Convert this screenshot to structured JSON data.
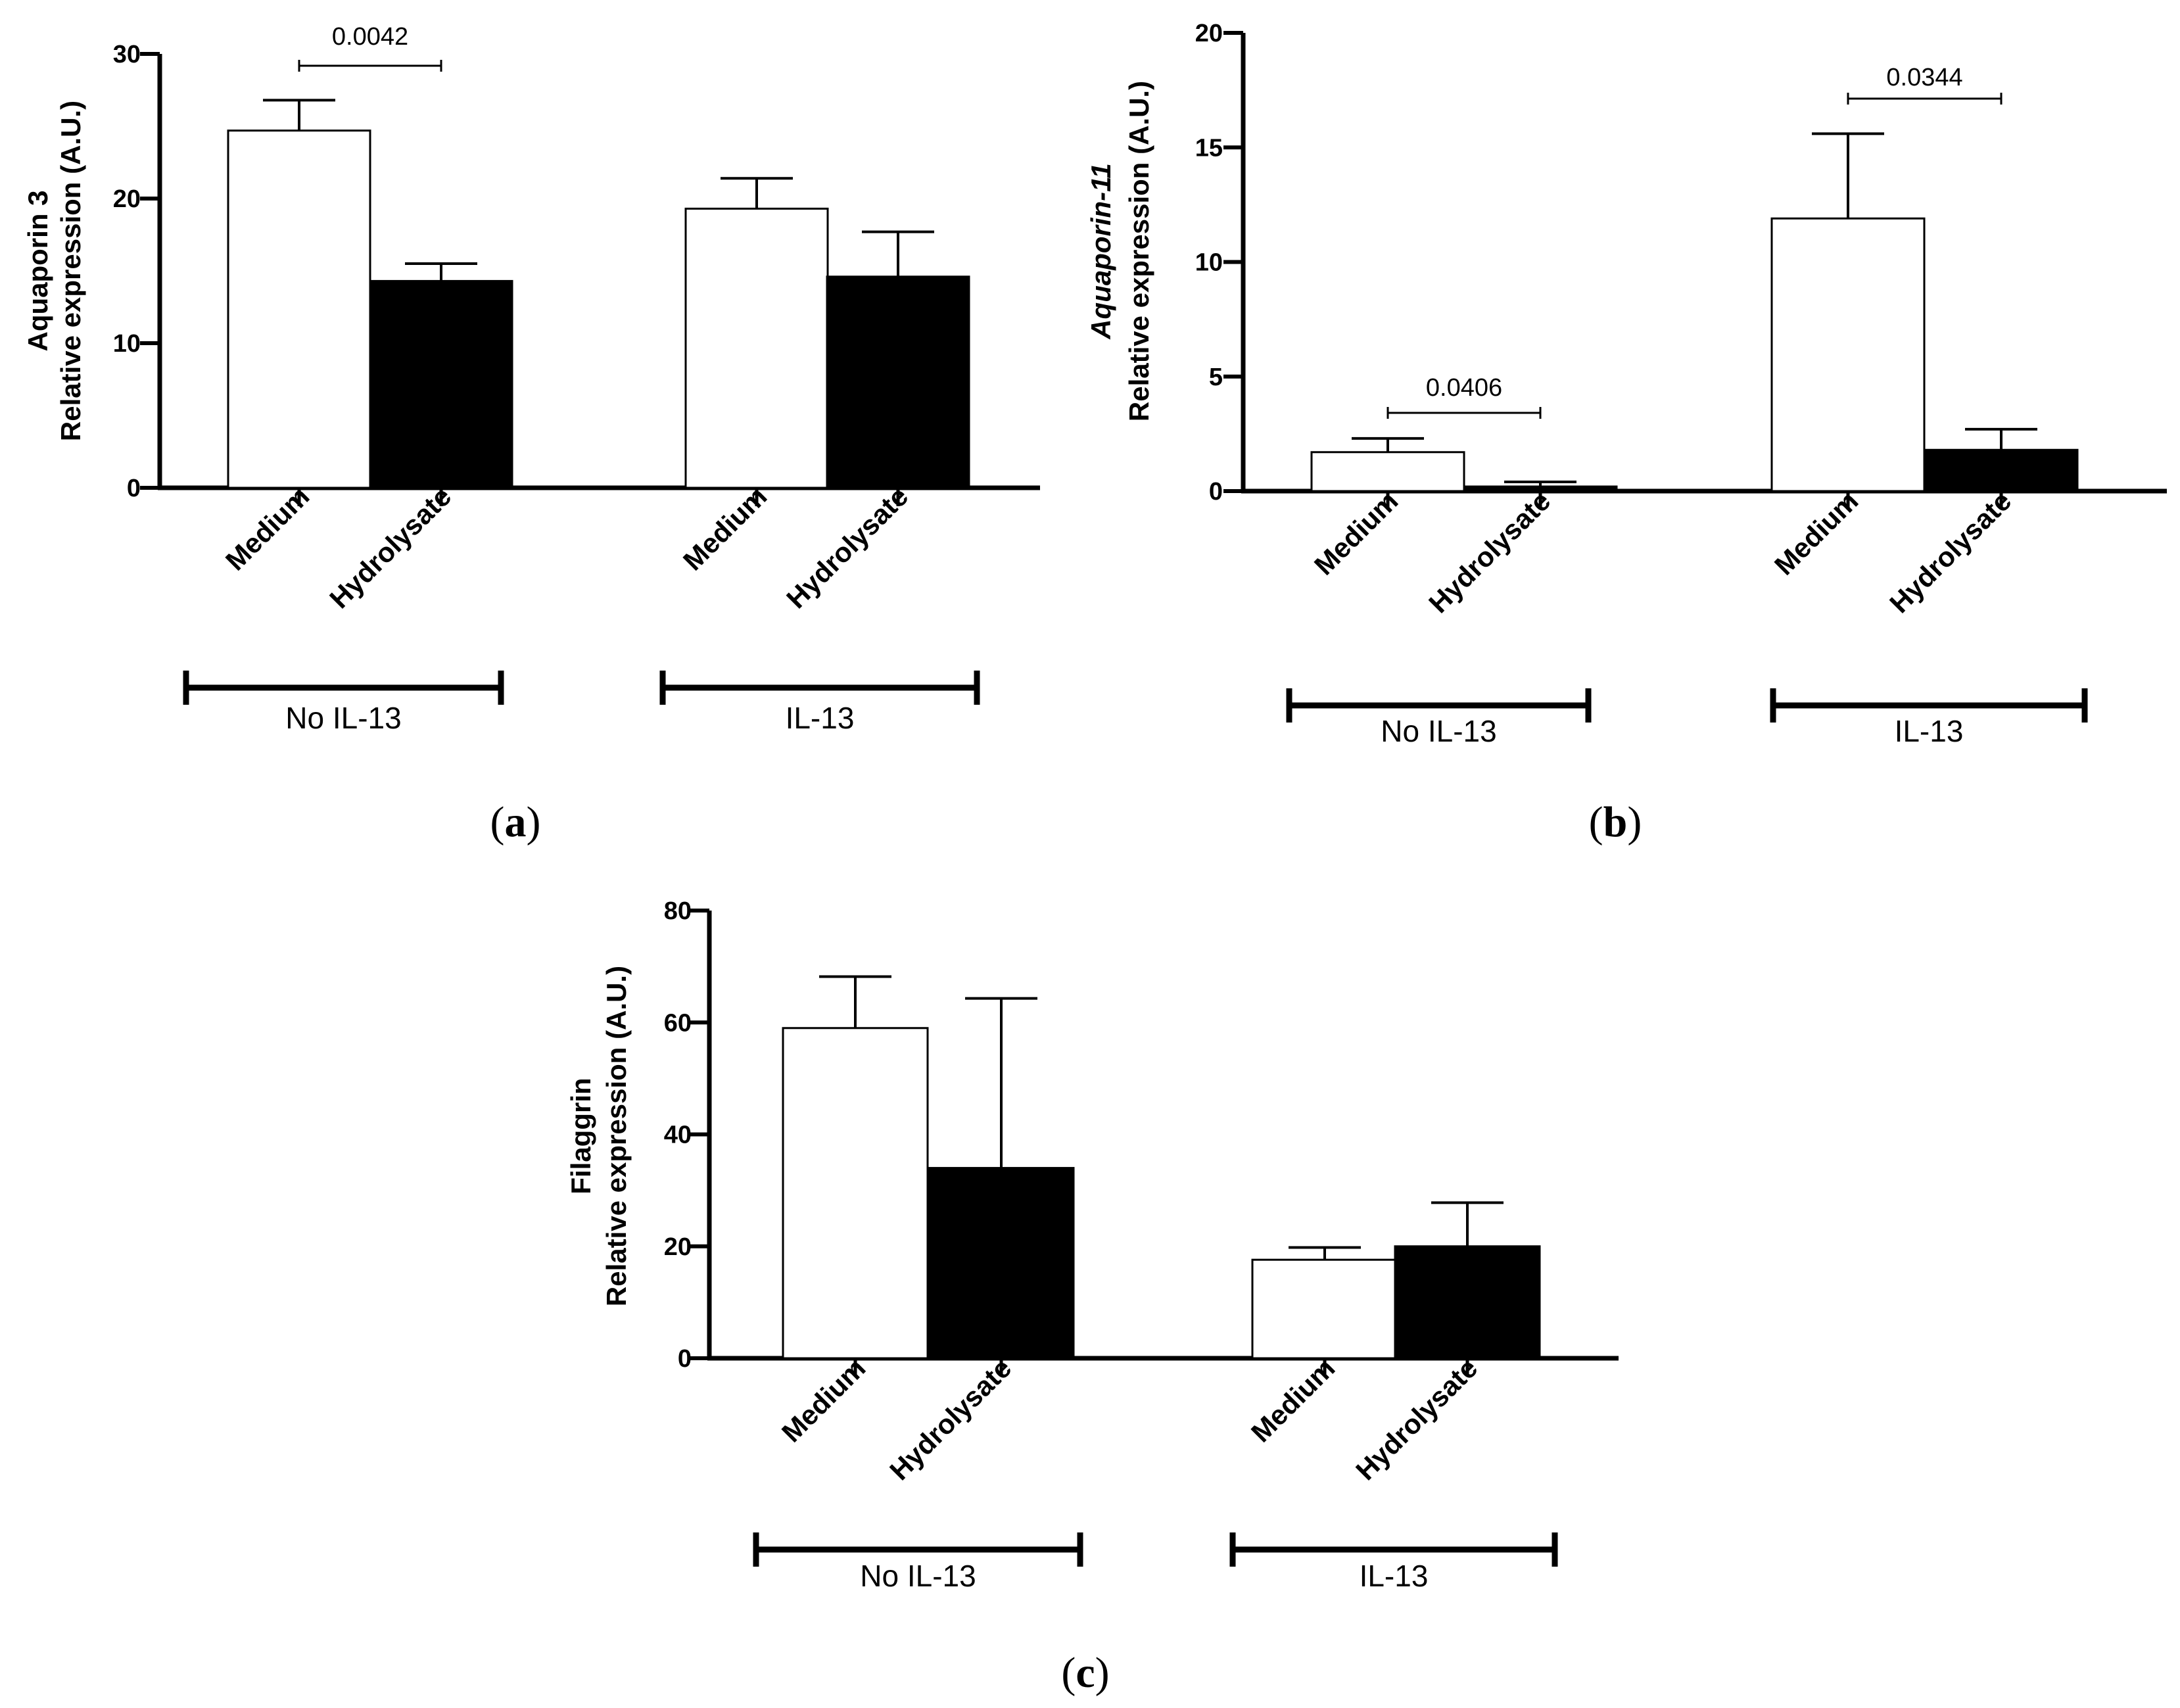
{
  "chart_data": [
    {
      "type": "bar",
      "panel_label": "a",
      "y_axis_title_line1": "Aquaporin 3",
      "y_axis_title_line2": "Relative expression (A.U.)",
      "title_italic": false,
      "ylim": [
        0,
        30
      ],
      "yticks": [
        0,
        10,
        20,
        30
      ],
      "series": [
        {
          "name": "Medium",
          "color": "#ffffff"
        },
        {
          "name": "Hydrolysate",
          "color": "#000000"
        }
      ],
      "groups": [
        {
          "name": "No IL-13",
          "bars": [
            {
              "label": "Medium",
              "value": 24.7,
              "error": 2.1
            },
            {
              "label": "Hydrolysate",
              "value": 14.3,
              "error": 1.2
            }
          ],
          "p_value": "0.0042"
        },
        {
          "name": "IL-13",
          "bars": [
            {
              "label": "Medium",
              "value": 19.3,
              "error": 2.1
            },
            {
              "label": "Hydrolysate",
              "value": 14.6,
              "error": 3.1
            }
          ],
          "p_value": null
        }
      ]
    },
    {
      "type": "bar",
      "panel_label": "b",
      "y_axis_title_line1": "Aquaporin-11",
      "y_axis_title_line2": "Relative expression (A.U.)",
      "title_italic": true,
      "ylim": [
        0,
        20
      ],
      "yticks": [
        0,
        5,
        10,
        15,
        20
      ],
      "series": [
        {
          "name": "Medium",
          "color": "#ffffff"
        },
        {
          "name": "Hydrolysate",
          "color": "#000000"
        }
      ],
      "groups": [
        {
          "name": "No IL-13",
          "bars": [
            {
              "label": "Medium",
              "value": 1.7,
              "error": 0.6
            },
            {
              "label": "Hydrolysate",
              "value": 0.2,
              "error": 0.2
            }
          ],
          "p_value": "0.0406"
        },
        {
          "name": "IL-13",
          "bars": [
            {
              "label": "Medium",
              "value": 11.9,
              "error": 3.7
            },
            {
              "label": "Hydrolysate",
              "value": 1.8,
              "error": 0.9
            }
          ],
          "p_value": "0.0344"
        }
      ]
    },
    {
      "type": "bar",
      "panel_label": "c",
      "y_axis_title_line1": "Filaggrin",
      "y_axis_title_line2": "Relative expression (A.U.)",
      "title_italic": false,
      "ylim": [
        0,
        80
      ],
      "yticks": [
        0,
        20,
        40,
        60,
        80
      ],
      "series": [
        {
          "name": "Medium",
          "color": "#ffffff"
        },
        {
          "name": "Hydrolysate",
          "color": "#000000"
        }
      ],
      "groups": [
        {
          "name": "No IL-13",
          "bars": [
            {
              "label": "Medium",
              "value": 59,
              "error": 9.2
            },
            {
              "label": "Hydrolysate",
              "value": 34,
              "error": 30.3
            }
          ],
          "p_value": null
        },
        {
          "name": "IL-13",
          "bars": [
            {
              "label": "Medium",
              "value": 17.6,
              "error": 2.2
            },
            {
              "label": "Hydrolysate",
              "value": 20,
              "error": 7.8
            }
          ],
          "p_value": null
        }
      ]
    }
  ]
}
